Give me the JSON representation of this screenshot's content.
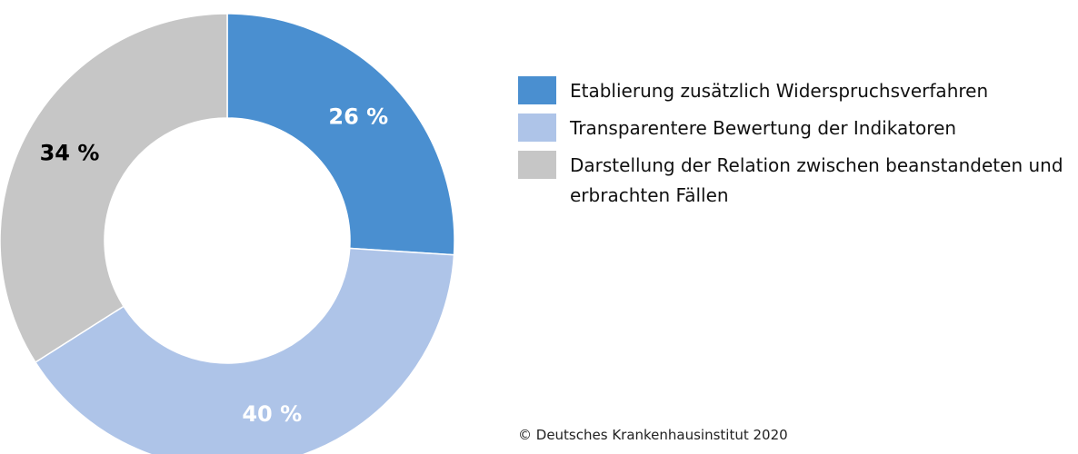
{
  "chart_data": {
    "type": "donut",
    "categories": [
      "Etablierung zusätzlich Widerspruchsverfahren",
      "Transparentere Bewertung der Indikatoren",
      "Darstellung der Relation zwischen beanstandeten und erbrachten Fällen"
    ],
    "values": [
      26,
      40,
      34
    ],
    "value_labels": [
      "26 %",
      "40 %",
      "34 %"
    ],
    "colors": [
      "#4a8fd0",
      "#aec4e8",
      "#c6c6c6"
    ],
    "label_colors": [
      "#ffffff",
      "#ffffff",
      "#000000"
    ],
    "legend": "right",
    "source": "© Deutsches Krankenhausinstitut 2020"
  }
}
